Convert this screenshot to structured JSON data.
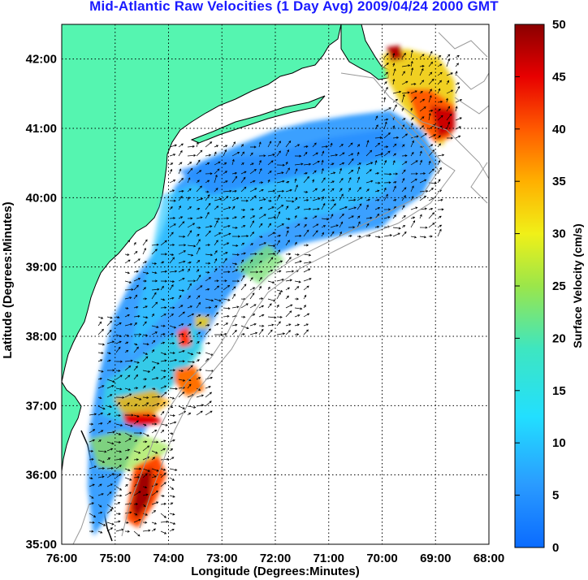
{
  "title": "Mid-Atlantic Raw Velocities (1 Day Avg) 2009/04/24 2000 GMT",
  "axes": {
    "xlabel": "Longitude (Degrees:Minutes)",
    "ylabel": "Latitude (Degrees:Minutes)",
    "x_ticks": [
      "76:00",
      "75:00",
      "74:00",
      "73:00",
      "72:00",
      "71:00",
      "70:00",
      "69:00",
      "68:00"
    ],
    "y_ticks": [
      "42:00",
      "41:00",
      "40:00",
      "39:00",
      "38:00",
      "37:00",
      "36:00",
      "35:00"
    ]
  },
  "colorbar": {
    "label": "Surface Velocity (cm/s)",
    "ticks": [
      "50",
      "45",
      "40",
      "35",
      "30",
      "25",
      "20",
      "15",
      "10",
      "5",
      "0"
    ],
    "range": [
      0,
      50
    ]
  },
  "colors": {
    "land": "#55f5b0",
    "ocean": "#ffffff",
    "title": "#1a1aff",
    "bathymetry": "#999999"
  },
  "chart_data": {
    "type": "heatmap",
    "title": "Mid-Atlantic Raw Velocities (1 Day Avg) 2009/04/24 2000 GMT",
    "xlabel": "Longitude (Degrees:Minutes)",
    "ylabel": "Latitude (Degrees:Minutes)",
    "xlim": [
      -76,
      -68
    ],
    "ylim": [
      35,
      42.5
    ],
    "x_ticks": [
      "76:00",
      "75:00",
      "74:00",
      "73:00",
      "72:00",
      "71:00",
      "70:00",
      "69:00",
      "68:00"
    ],
    "y_ticks": [
      "42:00",
      "41:00",
      "40:00",
      "39:00",
      "38:00",
      "37:00",
      "36:00",
      "35:00"
    ],
    "colorbar_label": "Surface Velocity (cm/s)",
    "colorbar_range": [
      0,
      50
    ],
    "grid": true,
    "coverage_region": "Mid-Atlantic Bight shelf",
    "high_speed_regions": [
      {
        "lon": -69.6,
        "lat": 41.7,
        "speed": 45
      },
      {
        "lon": -69.1,
        "lat": 41.0,
        "speed": 48
      },
      {
        "lon": -74.6,
        "lat": 35.9,
        "speed": 45
      },
      {
        "lon": -74.7,
        "lat": 36.8,
        "speed": 45
      },
      {
        "lon": -74.3,
        "lat": 37.6,
        "speed": 35
      },
      {
        "lon": -73.9,
        "lat": 37.9,
        "speed": 40
      }
    ]
  }
}
